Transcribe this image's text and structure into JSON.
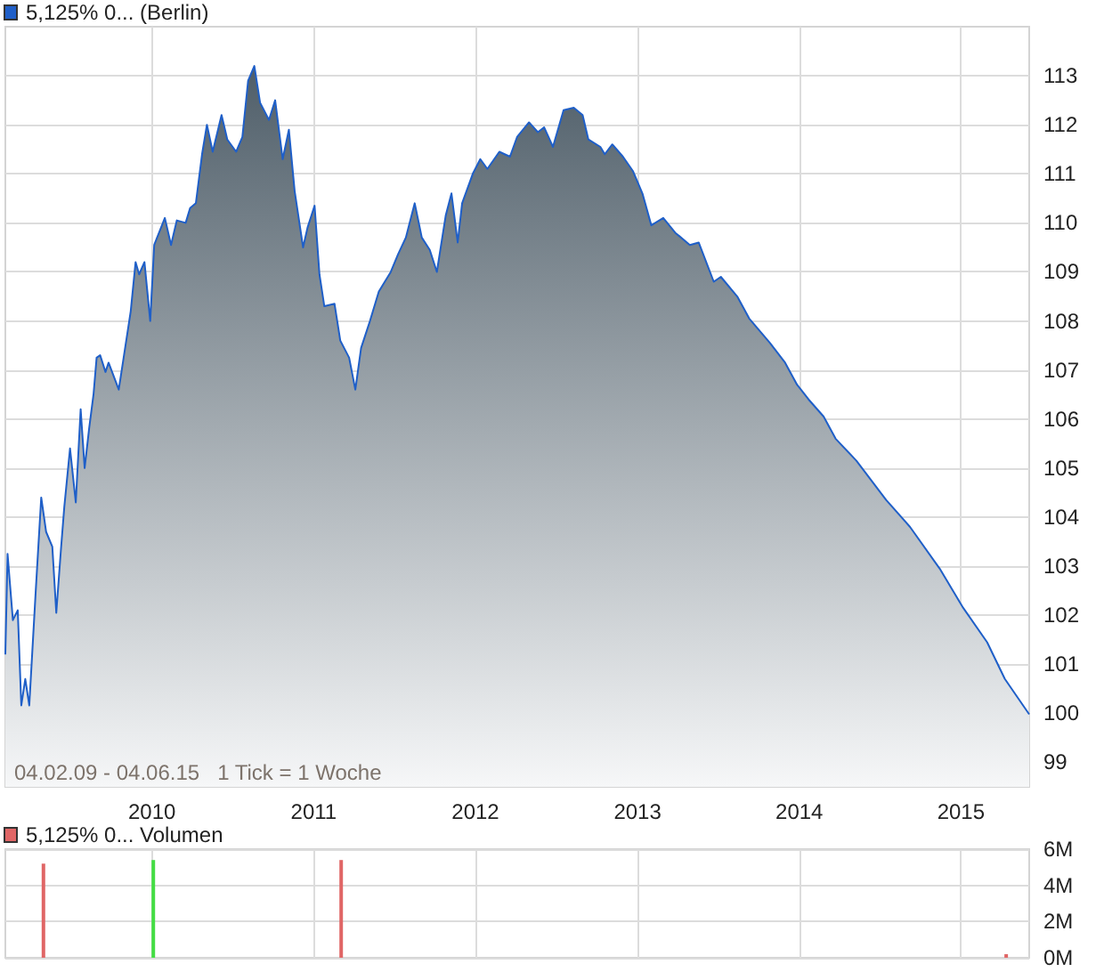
{
  "chart_data": [
    {
      "type": "area",
      "annotations": [
        "04.02.09 - 04.06.15   1 Tick = 1 Woche"
      ],
      "legend": "top left",
      "grid": true,
      "series": [
        {
          "name": "5,125% 0... (Berlin)",
          "color": "#1f5fc8",
          "x": [
            "2009-02-04",
            "2009-02-09",
            "2009-02-21",
            "2009-03-04",
            "2009-03-12",
            "2009-03-21",
            "2009-03-30",
            "2009-04-13",
            "2009-04-26",
            "2009-05-07",
            "2009-05-21",
            "2009-05-30",
            "2009-06-10",
            "2009-06-17",
            "2009-06-30",
            "2009-07-13",
            "2009-07-24",
            "2009-08-02",
            "2009-08-12",
            "2009-08-22",
            "2009-08-29",
            "2009-09-06",
            "2009-09-18",
            "2009-09-25",
            "2009-10-18",
            "2009-10-29",
            "2009-11-14",
            "2009-11-25",
            "2009-12-03",
            "2009-12-15",
            "2009-12-28",
            "2010-01-06",
            "2010-01-30",
            "2010-02-13",
            "2010-02-26",
            "2010-03-18",
            "2010-03-28",
            "2010-04-10",
            "2010-04-24",
            "2010-05-05",
            "2010-05-18",
            "2010-06-07",
            "2010-06-20",
            "2010-07-10",
            "2010-07-24",
            "2010-08-06",
            "2010-08-20",
            "2010-09-02",
            "2010-09-22",
            "2010-10-06",
            "2010-10-23",
            "2010-11-06",
            "2010-11-19",
            "2010-12-08",
            "2010-12-18",
            "2011-01-03",
            "2011-01-14",
            "2011-01-25",
            "2011-02-17",
            "2011-03-02",
            "2011-03-22",
            "2011-04-05",
            "2011-04-18",
            "2011-05-08",
            "2011-05-28",
            "2011-06-24",
            "2011-07-10",
            "2011-07-28",
            "2011-08-17",
            "2011-09-02",
            "2011-09-20",
            "2011-10-06",
            "2011-10-26",
            "2011-11-08",
            "2011-11-22",
            "2011-12-02",
            "2011-12-26",
            "2012-01-12",
            "2012-01-28",
            "2012-02-24",
            "2012-03-19",
            "2012-04-04",
            "2012-05-01",
            "2012-05-21",
            "2012-06-04",
            "2012-06-24",
            "2012-07-18",
            "2012-08-10",
            "2012-08-30",
            "2012-09-12",
            "2012-10-09",
            "2012-10-19",
            "2012-11-05",
            "2012-11-29",
            "2012-12-22",
            "2013-01-12",
            "2013-02-01",
            "2013-02-28",
            "2013-03-27",
            "2013-04-29",
            "2013-05-19",
            "2013-06-22",
            "2013-07-08",
            "2013-08-14",
            "2013-09-10",
            "2013-10-27",
            "2013-11-30",
            "2013-12-27",
            "2014-01-22",
            "2014-02-25",
            "2014-03-24",
            "2014-05-10",
            "2014-07-16",
            "2014-09-08",
            "2014-11-14",
            "2015-01-06",
            "2015-03-01",
            "2015-04-10",
            "2015-06-04"
          ],
          "values": [
            101.2,
            103.25,
            101.9,
            102.1,
            100.16,
            100.7,
            100.16,
            102.4,
            104.4,
            103.7,
            103.4,
            102.05,
            103.4,
            104.2,
            105.4,
            104.3,
            106.2,
            105.0,
            105.8,
            106.5,
            107.25,
            107.3,
            106.96,
            107.15,
            106.6,
            107.25,
            108.2,
            109.2,
            108.95,
            109.2,
            108.0,
            109.55,
            110.1,
            109.55,
            110.05,
            110.0,
            110.3,
            110.4,
            111.4,
            112.0,
            111.45,
            112.2,
            111.7,
            111.45,
            111.75,
            112.9,
            113.2,
            112.45,
            112.1,
            112.5,
            111.3,
            111.9,
            110.65,
            109.5,
            109.9,
            110.35,
            108.95,
            108.3,
            108.35,
            107.6,
            107.25,
            106.6,
            107.45,
            108.0,
            108.6,
            109.0,
            109.35,
            109.7,
            110.4,
            109.7,
            109.45,
            109.0,
            110.15,
            110.6,
            109.6,
            110.4,
            111.0,
            111.3,
            111.1,
            111.45,
            111.35,
            111.75,
            112.05,
            111.85,
            111.95,
            111.55,
            112.3,
            112.35,
            112.2,
            111.7,
            111.55,
            111.4,
            111.6,
            111.35,
            111.05,
            110.6,
            109.95,
            110.1,
            109.8,
            109.55,
            109.6,
            108.8,
            108.9,
            108.5,
            108.05,
            107.55,
            107.15,
            106.7,
            106.4,
            106.05,
            105.6,
            105.15,
            104.35,
            103.8,
            102.95,
            102.15,
            101.45,
            100.7,
            99.98
          ]
        }
      ],
      "xlim": [
        "2009-02-04",
        "2015-06-04"
      ],
      "xticks": [
        "2010",
        "2011",
        "2012",
        "2013",
        "2014",
        "2015"
      ],
      "ylim": [
        98.5,
        114
      ],
      "yticks": [
        99,
        100,
        101,
        102,
        103,
        104,
        105,
        106,
        107,
        108,
        109,
        110,
        111,
        112,
        113
      ]
    },
    {
      "type": "bar",
      "legend": "top left",
      "grid": true,
      "tick_labels": "y",
      "series": [
        {
          "name": "5,125% 0... Volumen",
          "color": "#e06666",
          "colors": [
            "#e06666",
            "#44dd44",
            "#e06666",
            "#e06666"
          ],
          "x": [
            "2009-05-01",
            "2010-01-04",
            "2011-03-04",
            "2015-04-13"
          ],
          "values": [
            5.2,
            5.4,
            5.4,
            0.2
          ]
        }
      ],
      "xlim": [
        "2009-02-04",
        "2015-06-04"
      ],
      "xticks": [
        {
          "value": "2010",
          "label": null
        },
        {
          "value": "2011",
          "label": null
        },
        {
          "value": "2012",
          "label": null
        },
        {
          "value": "2013",
          "label": null
        },
        {
          "value": "2014",
          "label": null
        },
        {
          "value": "2015",
          "label": null
        }
      ],
      "ylim": [
        0,
        6
      ],
      "yticks": [
        {
          "value": 0,
          "label": "0M"
        },
        {
          "value": 2,
          "label": "2M"
        },
        {
          "value": 4,
          "label": "4M"
        },
        {
          "value": 6,
          "label": "6M"
        }
      ]
    }
  ]
}
